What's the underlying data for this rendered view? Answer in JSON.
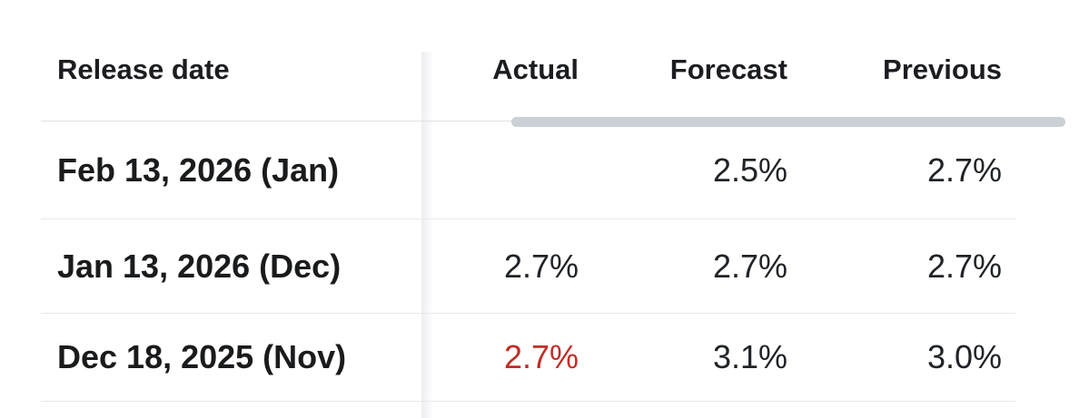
{
  "table": {
    "header": {
      "release_date": "Release date",
      "actual": "Actual",
      "forecast": "Forecast",
      "previous": "Previous"
    },
    "rows": [
      {
        "release_date": "Feb 13, 2026 (Jan)",
        "actual": "",
        "forecast": "2.5%",
        "previous": "2.7%",
        "actual_highlight": false
      },
      {
        "release_date": "Jan 13, 2026 (Dec)",
        "actual": "2.7%",
        "forecast": "2.7%",
        "previous": "2.7%",
        "actual_highlight": false
      },
      {
        "release_date": "Dec 18, 2025 (Nov)",
        "actual": "2.7%",
        "forecast": "3.1%",
        "previous": "3.0%",
        "actual_highlight": true
      }
    ],
    "colors": {
      "text": "#1b1d20",
      "actual_highlight_red": "#c32d26",
      "row_border": "#e7e9eb",
      "header_border": "#dfe1e3",
      "scrollbar_thumb": "#cbd0d6",
      "sticky_divider": "#eceef0"
    }
  }
}
